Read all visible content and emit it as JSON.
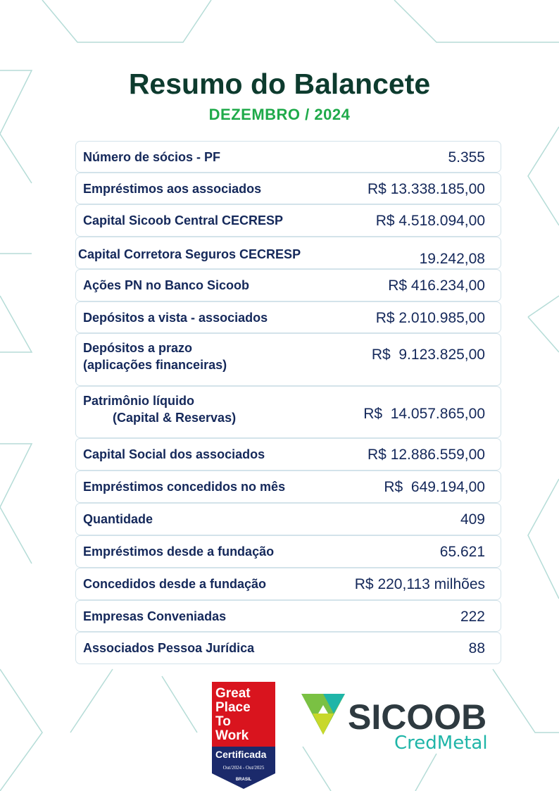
{
  "header": {
    "title": "Resumo do Balancete",
    "period": "DEZEMBRO / 2024"
  },
  "rows": [
    {
      "label": "Número de sócios - PF",
      "value": "5.355"
    },
    {
      "label": "Empréstimos aos associados",
      "value": "R$ 13.338.185,00"
    },
    {
      "label": "Capital Sicoob Central CECRESP",
      "value": "R$ 4.518.094,00"
    },
    {
      "label": "Capital Corretora Seguros CECRESP",
      "value": "19.242,08"
    },
    {
      "label": "Ações PN no Banco Sicoob",
      "value": "R$ 416.234,00"
    },
    {
      "label": "Depósitos a vista - associados",
      "value": "R$ 2.010.985,00"
    },
    {
      "label": "Depósitos a prazo",
      "label2": "(aplicações financeiras)",
      "value": "R$  9.123.825,00"
    },
    {
      "label": "Patrimônio líquido",
      "label2": "(Capital & Reservas)",
      "value": "R$  14.057.865,00"
    },
    {
      "label": "Capital Social dos associados",
      "value": "R$ 12.886.559,00"
    },
    {
      "label": "Empréstimos concedidos no mês",
      "value": "R$  649.194,00"
    },
    {
      "label": "Quantidade",
      "value": "409"
    },
    {
      "label": "Empréstimos desde a fundação",
      "value": "65.621"
    },
    {
      "label": "Concedidos desde a fundação",
      "value": "R$ 220,113 milhões"
    },
    {
      "label": "Empresas Conveniadas",
      "value": "222"
    },
    {
      "label": "Associados Pessoa Jurídica",
      "value": "88"
    }
  ],
  "logos": {
    "gptw": {
      "line1": "Great",
      "line2": "Place",
      "line3": "To",
      "line4": "Work",
      "cert": "Certificada",
      "period": "Out/2024 - Out/2025",
      "country": "BRASIL"
    },
    "sicoob": {
      "name": "SICOOB",
      "sub": "CredMetal"
    }
  },
  "colors": {
    "title": "#0d3b2e",
    "subtitle": "#1faa4a",
    "text": "#14285a",
    "pattern": "#a9d5d0"
  }
}
